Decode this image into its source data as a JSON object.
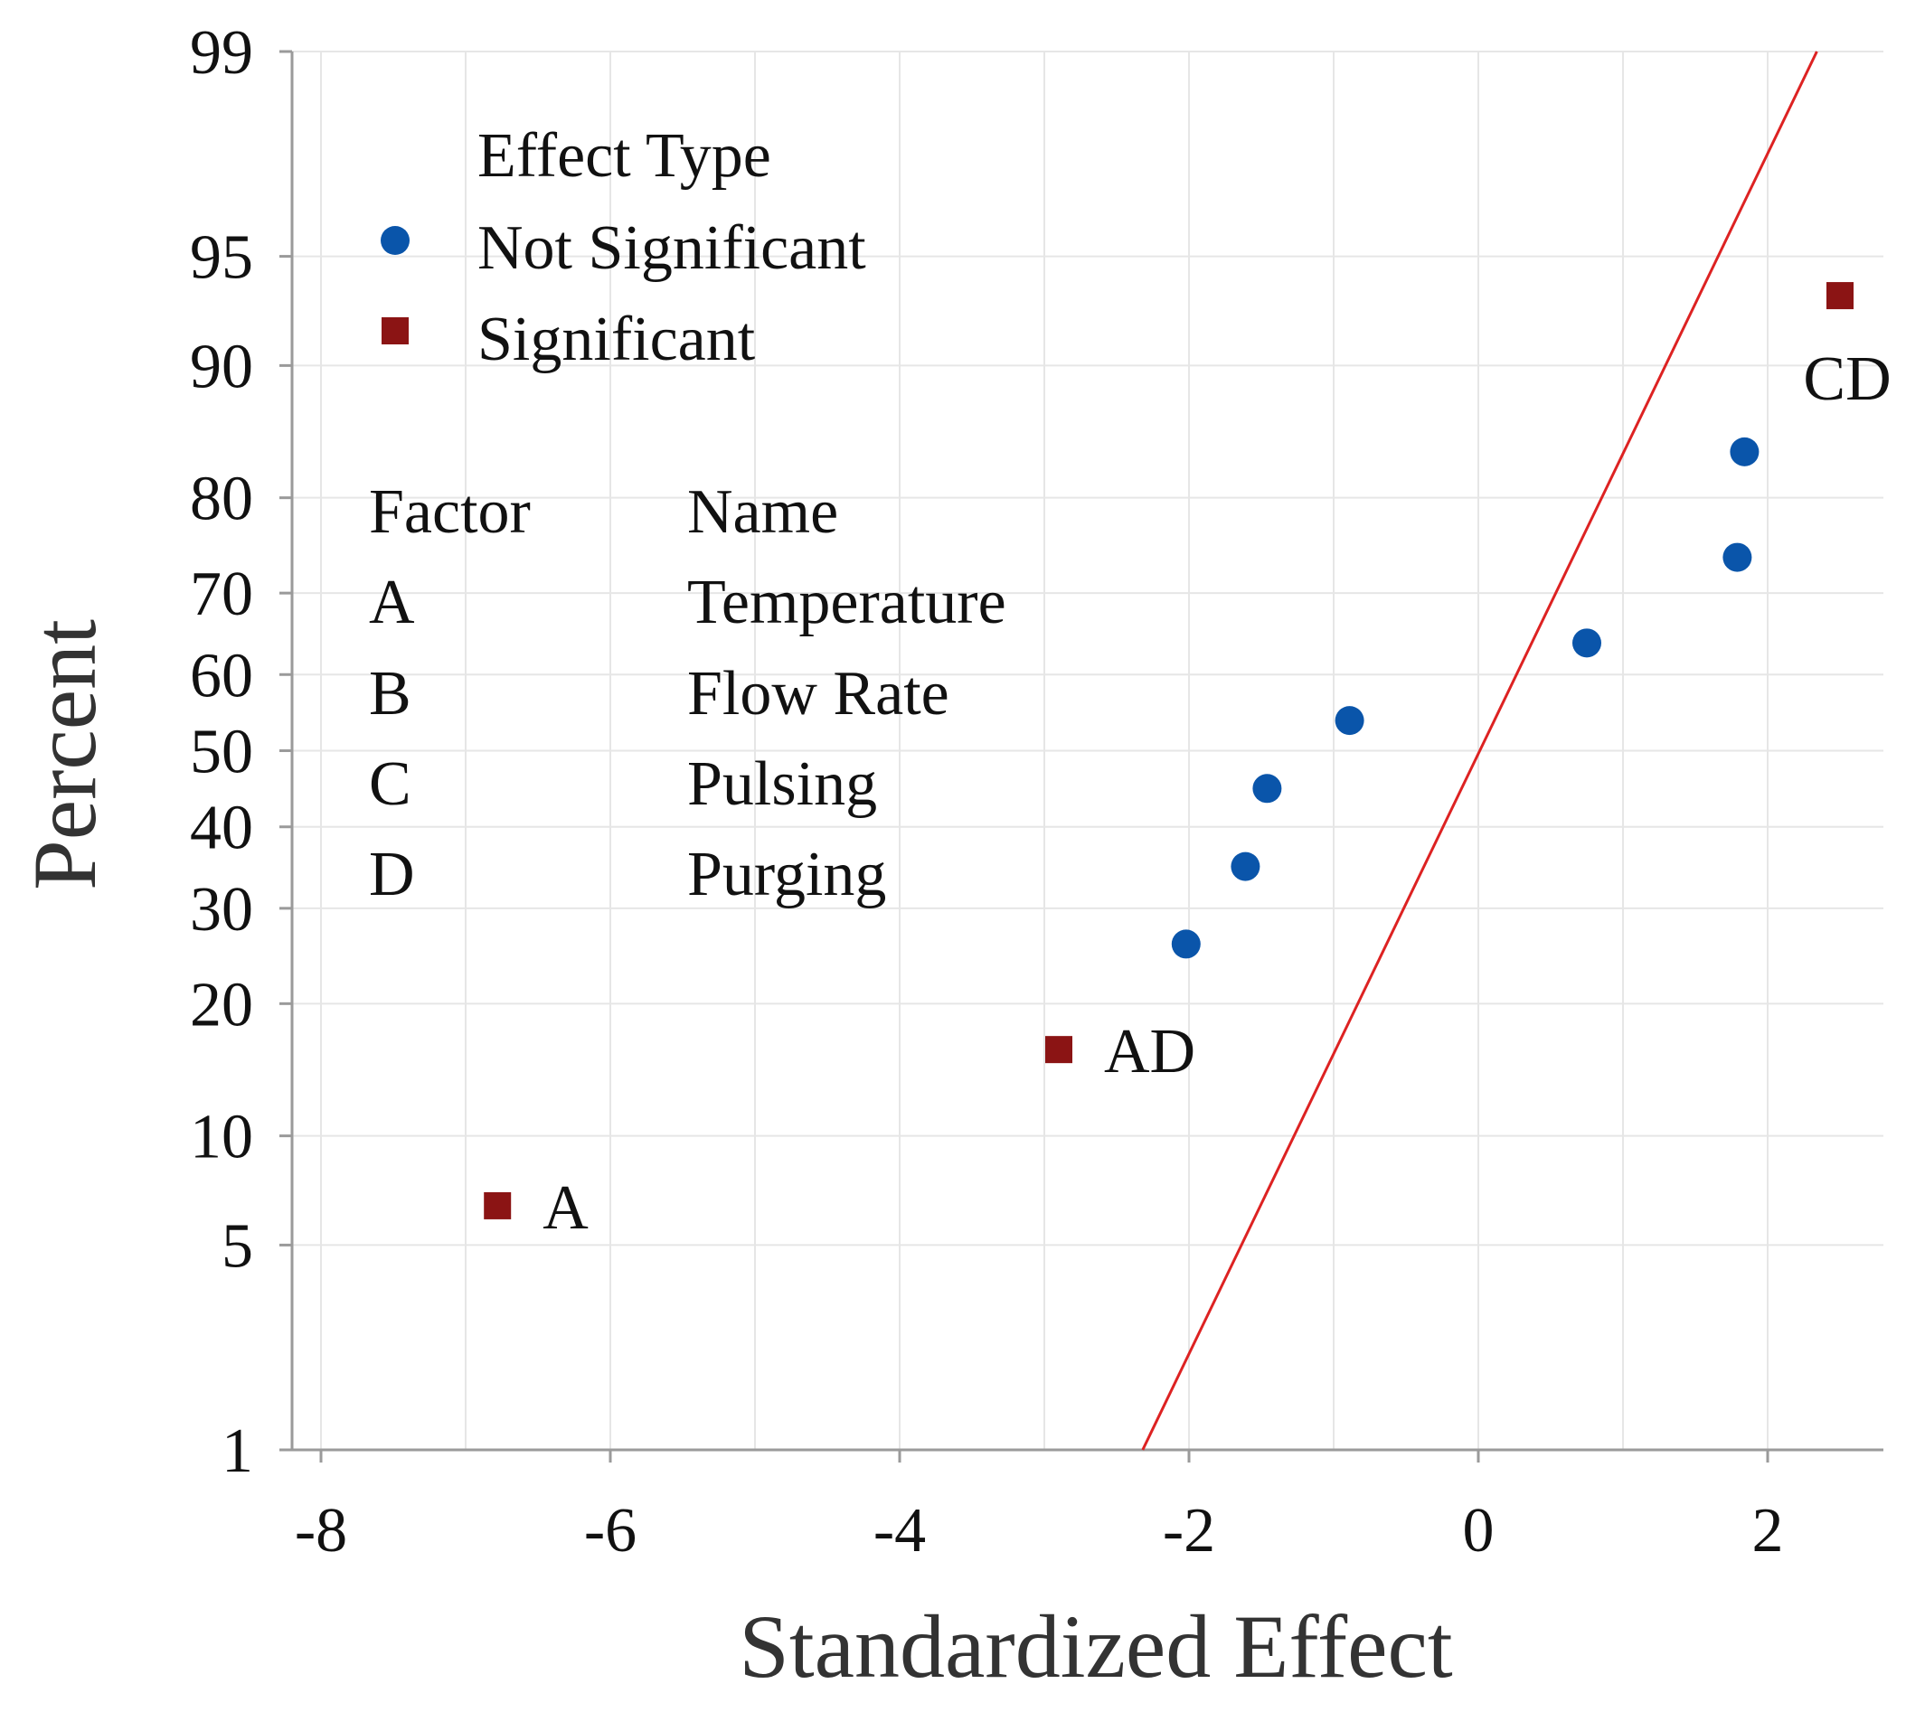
{
  "chart_data": {
    "type": "scatter",
    "xlabel": "Standardized Effect",
    "ylabel": "Percent",
    "xlim": [
      -8.2,
      2.8
    ],
    "ylim": [
      1,
      99
    ],
    "yscale": "normal-probability",
    "x_ticks": [
      -8,
      -6,
      -4,
      -2,
      0,
      2
    ],
    "x_tick_labels": [
      "-8",
      "-6",
      "-4",
      "-2",
      "0",
      "2"
    ],
    "y_ticks": [
      1,
      5,
      10,
      20,
      30,
      40,
      50,
      60,
      70,
      80,
      90,
      95,
      99
    ],
    "y_tick_labels": [
      "1",
      "5",
      "10",
      "20",
      "30",
      "40",
      "50",
      "60",
      "70",
      "80",
      "90",
      "95",
      "99"
    ],
    "x_minor_grid": [
      -7,
      -5,
      -3,
      -1,
      1
    ],
    "grid": true,
    "legend": {
      "title": "Effect Type",
      "placement": "top-left",
      "entries": [
        {
          "label": "Not Significant",
          "marker": "circle",
          "color": "#0a55aa"
        },
        {
          "label": "Significant",
          "marker": "square",
          "color": "#8b1414"
        }
      ]
    },
    "factor_table": {
      "headers": [
        "Factor",
        "Name"
      ],
      "rows": [
        [
          "A",
          "Temperature"
        ],
        [
          "B",
          "Flow Rate"
        ],
        [
          "C",
          "Pulsing"
        ],
        [
          "D",
          "Purging"
        ]
      ]
    },
    "series": [
      {
        "name": "Not Significant",
        "marker": "circle",
        "color": "#0a55aa",
        "points": [
          {
            "x": -2.02,
            "y": 26
          },
          {
            "x": -1.61,
            "y": 35
          },
          {
            "x": -1.46,
            "y": 45
          },
          {
            "x": -0.89,
            "y": 54
          },
          {
            "x": 0.75,
            "y": 64
          },
          {
            "x": 1.79,
            "y": 74
          },
          {
            "x": 1.84,
            "y": 84
          }
        ]
      },
      {
        "name": "Significant",
        "marker": "square",
        "color": "#8b1414",
        "points": [
          {
            "x": -6.78,
            "y": 6.5,
            "label": "A"
          },
          {
            "x": -2.9,
            "y": 16,
            "label": "AD"
          },
          {
            "x": 2.5,
            "y": 93.5,
            "label": "CD"
          }
        ]
      }
    ],
    "reference_line": {
      "color": "#dd2222",
      "points": [
        {
          "x": -2.32,
          "y": 1
        },
        {
          "x": 2.34,
          "y": 99
        }
      ]
    }
  }
}
